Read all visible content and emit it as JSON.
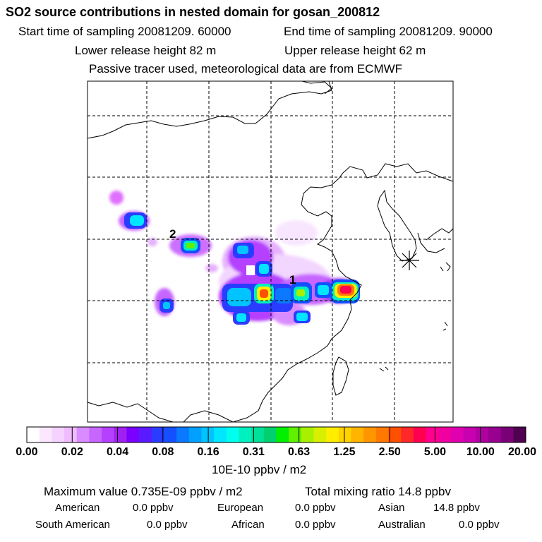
{
  "header": {
    "title": "SO2 source contributions in nested domain for gosan_200812",
    "start_sampling": "Start time of sampling 20081209. 60000",
    "end_sampling": "End time of sampling 20081209. 90000",
    "lower_release": "Lower release height   82 m",
    "upper_release": "Upper release height   62 m",
    "tracer_note": "Passive tracer used, meteorological data are from ECMWF"
  },
  "map": {
    "labels": [
      "1",
      "2"
    ],
    "receptor_marker": "receptor-star-icon"
  },
  "colorbar": {
    "ticks": [
      "0.00",
      "0.02",
      "0.04",
      "0.08",
      "0.16",
      "0.31",
      "0.63",
      "1.25",
      "2.50",
      "5.00",
      "10.00",
      "20.00"
    ],
    "unit": "10E-10 ppbv / m2",
    "colors": [
      "#ffffff",
      "#fbe8ff",
      "#f5d2ff",
      "#f0bcff",
      "#d98cff",
      "#c766ff",
      "#b540ff",
      "#a020f0",
      "#7a00ff",
      "#5a1aff",
      "#2a3cff",
      "#1450ff",
      "#0a78ff",
      "#00a0ff",
      "#00c4ff",
      "#00e6ff",
      "#00ffee",
      "#00f0c0",
      "#00e098",
      "#00d070",
      "#00f000",
      "#60f000",
      "#a8f000",
      "#d8f000",
      "#ffee00",
      "#ffd200",
      "#ffb400",
      "#ff9600",
      "#ff7800",
      "#ff5000",
      "#ff2828",
      "#ff0050",
      "#ff0090",
      "#f000a0",
      "#e000b0",
      "#c800b0",
      "#b000a0",
      "#980090",
      "#7a0078",
      "#500050"
    ]
  },
  "summary": {
    "max_label": "Maximum value  0.735E-09 ppbv / m2",
    "total_label": "Total mixing ratio       14.8 ppbv",
    "regions": [
      {
        "name": "American",
        "value": "0.0 ppbv"
      },
      {
        "name": "European",
        "value": "0.0 ppbv"
      },
      {
        "name": "Asian",
        "value": "14.8 ppbv"
      },
      {
        "name": "South American",
        "value": "0.0 ppbv"
      },
      {
        "name": "African",
        "value": "0.0 ppbv"
      },
      {
        "name": "Australian",
        "value": "0.0 ppbv"
      }
    ]
  }
}
